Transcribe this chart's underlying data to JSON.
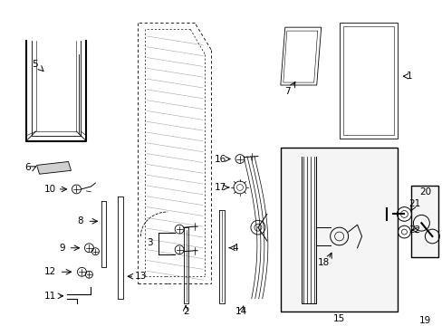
{
  "bg_color": "#ffffff",
  "fig_width": 4.89,
  "fig_height": 3.6,
  "dpi": 100,
  "line_color": "#000000",
  "gray_fill": "#f0f0f0",
  "hatch_color": "#cccccc"
}
